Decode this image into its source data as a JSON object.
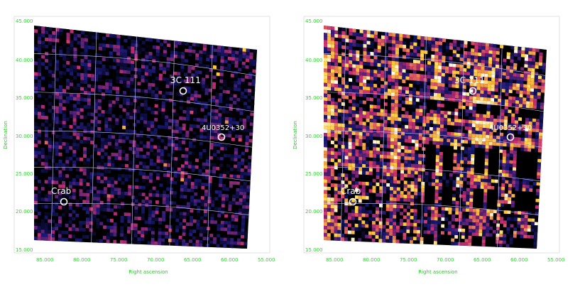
{
  "panels": [
    {
      "id": "left",
      "map_style": "significance",
      "axes": {
        "xlabel": "Right ascension",
        "ylabel": "Declination",
        "xticks": [
          "85.000",
          "80.000",
          "75.000",
          "70.000",
          "65.000",
          "60.000",
          "55.000"
        ],
        "yticks": [
          "45.000",
          "40.000",
          "35.000",
          "30.000",
          "25.000",
          "20.000",
          "15.000"
        ]
      },
      "sources": [
        {
          "label": "3C 111",
          "ra": 64.6,
          "dec": 38.0
        },
        {
          "label": "4U0352+30",
          "ra": 59.4,
          "dec": 31.0
        },
        {
          "label": "Crab",
          "ra": 83.6,
          "dec": 22.0
        }
      ]
    },
    {
      "id": "right",
      "map_style": "exposure-artifacts",
      "axes": {
        "xlabel": "Right ascension",
        "ylabel": "Declination",
        "xticks": [
          "85.000",
          "80.000",
          "75.000",
          "70.000",
          "65.000",
          "60.000",
          "55.000"
        ],
        "yticks": [
          "45.000",
          "40.000",
          "35.000",
          "30.000",
          "25.000",
          "20.000",
          "15.000"
        ]
      },
      "sources": [
        {
          "label": "3C 111",
          "ra": 64.6,
          "dec": 38.0
        },
        {
          "label": "4U0352+30",
          "ra": 59.4,
          "dec": 31.0
        },
        {
          "label": "Crab",
          "ra": 83.6,
          "dec": 22.0
        }
      ]
    }
  ],
  "colors": {
    "background": "#000000",
    "low": "#1a1a7a",
    "mid": "#d03070",
    "high": "#ffcc33",
    "peak": "#ffffff",
    "grid": "#c8c8ff",
    "frame": "#cccccc",
    "label": "#22dd22"
  }
}
